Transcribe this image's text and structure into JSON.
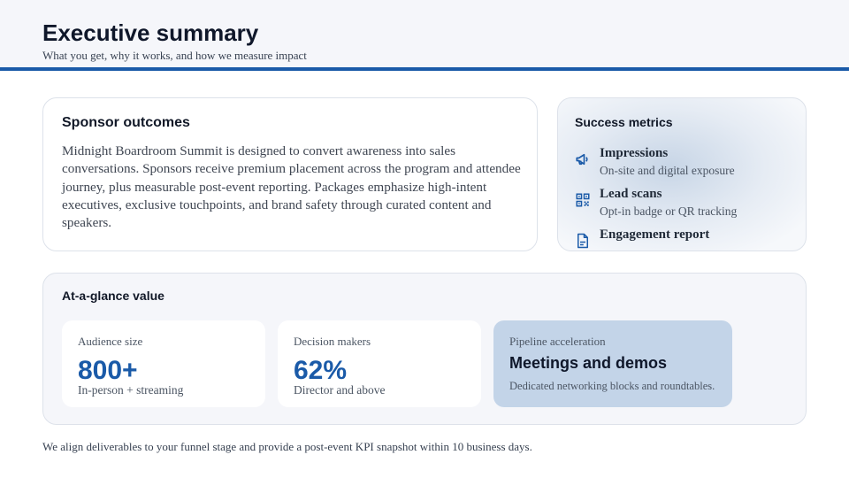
{
  "header": {
    "title": "Executive summary",
    "subtitle": "What you get, why it works, and how we measure impact"
  },
  "outcomes": {
    "title": "Sponsor outcomes",
    "body": "Midnight Boardroom Summit is designed to convert awareness into sales conversations. Sponsors receive premium placement across the program and attendee journey, plus measurable post-event reporting. Packages emphasize high-intent executives, exclusive touchpoints, and brand safety through curated content and speakers."
  },
  "metrics": {
    "title": "Success metrics",
    "items": [
      {
        "icon": "megaphone-icon",
        "title": "Impressions",
        "desc": "On-site and digital exposure"
      },
      {
        "icon": "qr-code-icon",
        "title": "Lead scans",
        "desc": "Opt-in badge or QR tracking"
      },
      {
        "icon": "document-icon",
        "title": "Engagement report",
        "desc": ""
      }
    ]
  },
  "glance": {
    "title": "At-a-glance value",
    "tiles": [
      {
        "label": "Audience size",
        "value": "800+",
        "sub": "In-person + streaming"
      },
      {
        "label": "Decision makers",
        "value": "62%",
        "sub": "Director and above"
      },
      {
        "label": "Pipeline acceleration",
        "value": "Meetings and demos",
        "sub": "Dedicated networking blocks and roundtables."
      }
    ]
  },
  "footer": "We align deliverables to your funnel stage and provide a post-event KPI snapshot within 10 business days.",
  "colors": {
    "accent": "#1a5aa8",
    "highlight_tile": "#c3d4e8"
  }
}
